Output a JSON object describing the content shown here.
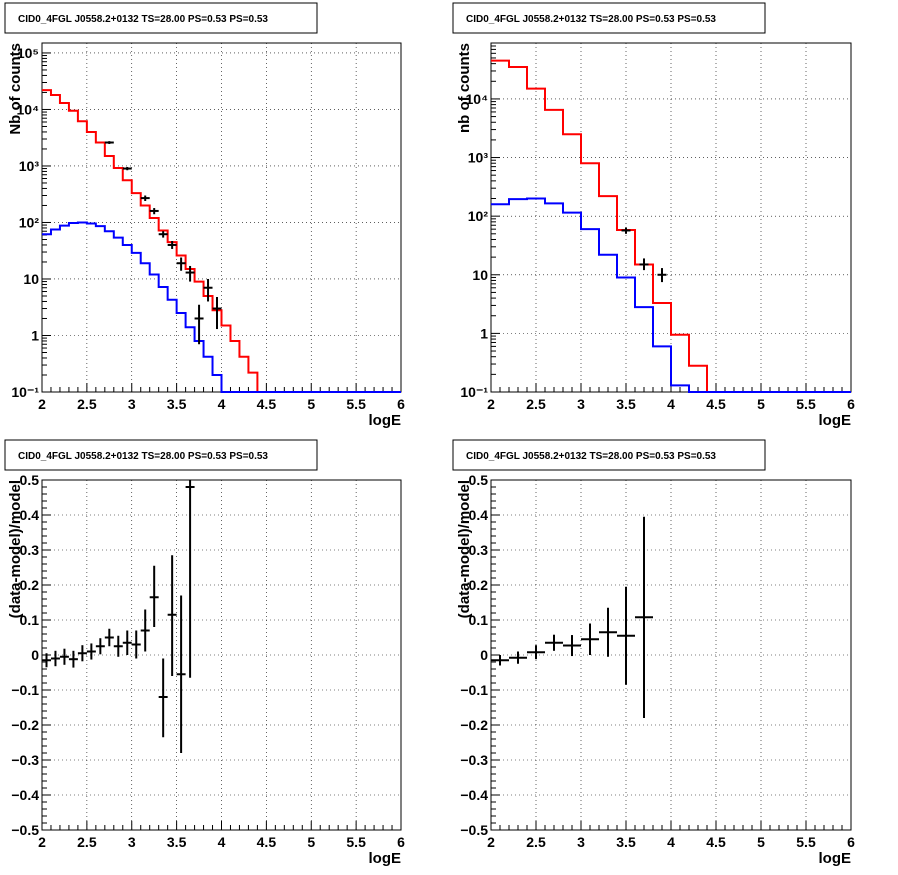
{
  "chart_data": [
    {
      "type": "histogram",
      "title": "CID0_4FGL J0558.2+0132 TS=28.00 PS=0.53 PS=0.53",
      "xlabel": "logE",
      "ylabel": "Nb of counts",
      "xlim": [
        2,
        6
      ],
      "ylim": [
        0.1,
        150000
      ],
      "ylog": true,
      "grid": true,
      "xticks": [
        "2",
        "2.5",
        "3",
        "3.5",
        "4",
        "4.5",
        "5",
        "5.5",
        "6"
      ],
      "ytick_values": [
        0.1,
        1,
        10,
        100,
        1000,
        10000,
        100000
      ],
      "ytick_labels": [
        "10⁻¹",
        "1",
        "10",
        "10²",
        "10³",
        "10⁴",
        "10⁵"
      ],
      "edges": [
        2.0,
        2.1,
        2.2,
        2.3,
        2.4,
        2.5,
        2.6,
        2.7,
        2.8,
        2.9,
        3.0,
        3.1,
        3.2,
        3.3,
        3.4,
        3.5,
        3.6,
        3.7,
        3.8,
        3.9,
        4.0,
        4.1,
        4.2,
        4.3,
        4.4,
        4.5,
        4.6,
        4.7,
        4.8,
        4.9,
        5.0,
        5.1,
        5.2,
        5.3,
        5.4,
        5.5,
        5.6,
        5.7,
        5.8,
        5.9,
        6.0
      ],
      "series": [
        {
          "color": "#ff0000",
          "values": [
            22000,
            18000,
            13000,
            9500,
            6200,
            4000,
            2600,
            1500,
            920,
            560,
            330,
            200,
            120,
            72,
            45,
            26,
            15,
            9,
            5,
            2.8,
            1.5,
            0.8,
            0.42,
            0.22,
            0.1,
            0.1,
            0.1,
            0.1,
            0.1,
            0.1,
            0.1,
            0.1,
            0.1,
            0.1,
            0.1,
            0.1,
            0.1,
            0.1,
            0.1,
            0.1
          ]
        },
        {
          "color": "#0000ff",
          "values": [
            62,
            75,
            88,
            98,
            100,
            96,
            86,
            70,
            54,
            40,
            29,
            19,
            12,
            7.2,
            4.3,
            2.5,
            1.4,
            0.8,
            0.42,
            0.2,
            0.1,
            0.1,
            0.1,
            0.1,
            0.1,
            0.1,
            0.1,
            0.1,
            0.1,
            0.1,
            0.1,
            0.1,
            0.1,
            0.1,
            0.1,
            0.1,
            0.1,
            0.1,
            0.1,
            0.1
          ]
        }
      ],
      "points": [
        {
          "x": 2.75,
          "y": 2600,
          "ylo": 2450,
          "yhi": 2750
        },
        {
          "x": 2.95,
          "y": 900,
          "ylo": 840,
          "yhi": 960
        },
        {
          "x": 3.15,
          "y": 270,
          "ylo": 240,
          "yhi": 300
        },
        {
          "x": 3.25,
          "y": 160,
          "ylo": 140,
          "yhi": 180
        },
        {
          "x": 3.35,
          "y": 62,
          "ylo": 54,
          "yhi": 70
        },
        {
          "x": 3.45,
          "y": 40,
          "ylo": 34,
          "yhi": 47
        },
        {
          "x": 3.55,
          "y": 19,
          "ylo": 14,
          "yhi": 24
        },
        {
          "x": 3.65,
          "y": 13,
          "ylo": 9,
          "yhi": 17
        },
        {
          "x": 3.75,
          "y": 2,
          "ylo": 0.7,
          "yhi": 3.5
        },
        {
          "x": 3.85,
          "y": 7,
          "ylo": 4,
          "yhi": 10
        },
        {
          "x": 3.95,
          "y": 3,
          "ylo": 1.3,
          "yhi": 4.8
        }
      ]
    },
    {
      "type": "histogram",
      "title": "CID0_4FGL J0558.2+0132 TS=28.00 PS=0.53 PS=0.53",
      "xlabel": "logE",
      "ylabel": "nb of counts",
      "xlim": [
        2,
        6
      ],
      "ylim": [
        0.1,
        90000
      ],
      "ylog": true,
      "grid": true,
      "xticks": [
        "2",
        "2.5",
        "3",
        "3.5",
        "4",
        "4.5",
        "5",
        "5.5",
        "6"
      ],
      "ytick_values": [
        0.1,
        1,
        10,
        100,
        1000,
        10000
      ],
      "ytick_labels": [
        "10⁻¹",
        "1",
        "10",
        "10²",
        "10³",
        "10⁴"
      ],
      "edges": [
        2.0,
        2.2,
        2.4,
        2.6,
        2.8,
        3.0,
        3.2,
        3.4,
        3.6,
        3.8,
        4.0,
        4.2,
        4.4,
        4.6,
        4.8,
        5.0,
        5.2,
        5.4,
        5.6,
        5.8,
        6.0
      ],
      "series": [
        {
          "color": "#ff0000",
          "values": [
            45000,
            35000,
            15000,
            6500,
            2500,
            800,
            220,
            58,
            15,
            3.3,
            0.95,
            0.28,
            0.1,
            0.1,
            0.1,
            0.1,
            0.1,
            0.1,
            0.1,
            0.1
          ]
        },
        {
          "color": "#0000ff",
          "values": [
            160,
            195,
            200,
            165,
            115,
            60,
            22,
            9,
            2.8,
            0.6,
            0.13,
            0.1,
            0.1,
            0.1,
            0.1,
            0.1,
            0.1,
            0.1,
            0.1,
            0.1
          ]
        }
      ],
      "points": [
        {
          "x": 3.5,
          "y": 57,
          "ylo": 50,
          "yhi": 64
        },
        {
          "x": 3.7,
          "y": 15,
          "ylo": 12,
          "yhi": 19
        },
        {
          "x": 3.9,
          "y": 10,
          "ylo": 7.5,
          "yhi": 13
        }
      ]
    },
    {
      "type": "scatter",
      "title": "CID0_4FGL J0558.2+0132 TS=28.00 PS=0.53 PS=0.53",
      "xlabel": "logE",
      "ylabel": "(data-model)/model",
      "xlim": [
        2,
        6
      ],
      "ylim": [
        -0.5,
        0.5
      ],
      "ylog": false,
      "grid": true,
      "xticks": [
        "2",
        "2.5",
        "3",
        "3.5",
        "4",
        "4.5",
        "5",
        "5.5",
        "6"
      ],
      "ytick_values": [
        -0.5,
        -0.4,
        -0.3,
        -0.2,
        -0.1,
        0,
        0.1,
        0.2,
        0.3,
        0.4,
        0.5
      ],
      "ytick_labels": [
        "−0.5",
        "−0.4",
        "−0.3",
        "−0.2",
        "−0.1",
        "0",
        "0.1",
        "0.2",
        "0.3",
        "0.4",
        "0.5"
      ],
      "xerr": 0.05,
      "points": [
        {
          "x": 2.05,
          "y": -0.015,
          "ylo": -0.035,
          "yhi": 0.005
        },
        {
          "x": 2.15,
          "y": -0.01,
          "ylo": -0.032,
          "yhi": 0.012
        },
        {
          "x": 2.25,
          "y": -0.005,
          "ylo": -0.028,
          "yhi": 0.018
        },
        {
          "x": 2.35,
          "y": -0.012,
          "ylo": -0.036,
          "yhi": 0.012
        },
        {
          "x": 2.45,
          "y": 0.005,
          "ylo": -0.018,
          "yhi": 0.028
        },
        {
          "x": 2.55,
          "y": 0.01,
          "ylo": -0.013,
          "yhi": 0.033
        },
        {
          "x": 2.65,
          "y": 0.025,
          "ylo": 0.002,
          "yhi": 0.048
        },
        {
          "x": 2.75,
          "y": 0.05,
          "ylo": 0.025,
          "yhi": 0.075
        },
        {
          "x": 2.85,
          "y": 0.025,
          "ylo": -0.005,
          "yhi": 0.055
        },
        {
          "x": 2.95,
          "y": 0.035,
          "ylo": 0.0,
          "yhi": 0.07
        },
        {
          "x": 3.05,
          "y": 0.03,
          "ylo": -0.01,
          "yhi": 0.07
        },
        {
          "x": 3.15,
          "y": 0.07,
          "ylo": 0.01,
          "yhi": 0.13
        },
        {
          "x": 3.25,
          "y": 0.165,
          "ylo": 0.08,
          "yhi": 0.255
        },
        {
          "x": 3.35,
          "y": -0.12,
          "ylo": -0.235,
          "yhi": -0.01
        },
        {
          "x": 3.45,
          "y": 0.115,
          "ylo": -0.06,
          "yhi": 0.285
        },
        {
          "x": 3.55,
          "y": -0.055,
          "ylo": -0.28,
          "yhi": 0.17
        },
        {
          "x": 3.65,
          "y": 0.48,
          "ylo": -0.065,
          "yhi": 0.5
        }
      ]
    },
    {
      "type": "scatter",
      "title": "CID0_4FGL J0558.2+0132 TS=28.00 PS=0.53 PS=0.53",
      "xlabel": "logE",
      "ylabel": "(data-model)/model",
      "xlim": [
        2,
        6
      ],
      "ylim": [
        -0.5,
        0.5
      ],
      "ylog": false,
      "grid": true,
      "xticks": [
        "2",
        "2.5",
        "3",
        "3.5",
        "4",
        "4.5",
        "5",
        "5.5",
        "6"
      ],
      "ytick_values": [
        -0.5,
        -0.4,
        -0.3,
        -0.2,
        -0.1,
        0,
        0.1,
        0.2,
        0.3,
        0.4,
        0.5
      ],
      "ytick_labels": [
        "−0.5",
        "−0.4",
        "−0.3",
        "−0.2",
        "−0.1",
        "0",
        "0.1",
        "0.2",
        "0.3",
        "0.4",
        "0.5"
      ],
      "xerr": 0.1,
      "points": [
        {
          "x": 2.1,
          "y": -0.015,
          "ylo": -0.03,
          "yhi": 0.0
        },
        {
          "x": 2.3,
          "y": -0.008,
          "ylo": -0.025,
          "yhi": 0.01
        },
        {
          "x": 2.5,
          "y": 0.008,
          "ylo": -0.012,
          "yhi": 0.028
        },
        {
          "x": 2.7,
          "y": 0.035,
          "ylo": 0.012,
          "yhi": 0.058
        },
        {
          "x": 2.9,
          "y": 0.027,
          "ylo": -0.003,
          "yhi": 0.057
        },
        {
          "x": 3.1,
          "y": 0.045,
          "ylo": 0.0,
          "yhi": 0.09
        },
        {
          "x": 3.3,
          "y": 0.065,
          "ylo": -0.005,
          "yhi": 0.135
        },
        {
          "x": 3.5,
          "y": 0.055,
          "ylo": -0.085,
          "yhi": 0.195
        },
        {
          "x": 3.7,
          "y": 0.108,
          "ylo": -0.18,
          "yhi": 0.395
        }
      ]
    }
  ]
}
